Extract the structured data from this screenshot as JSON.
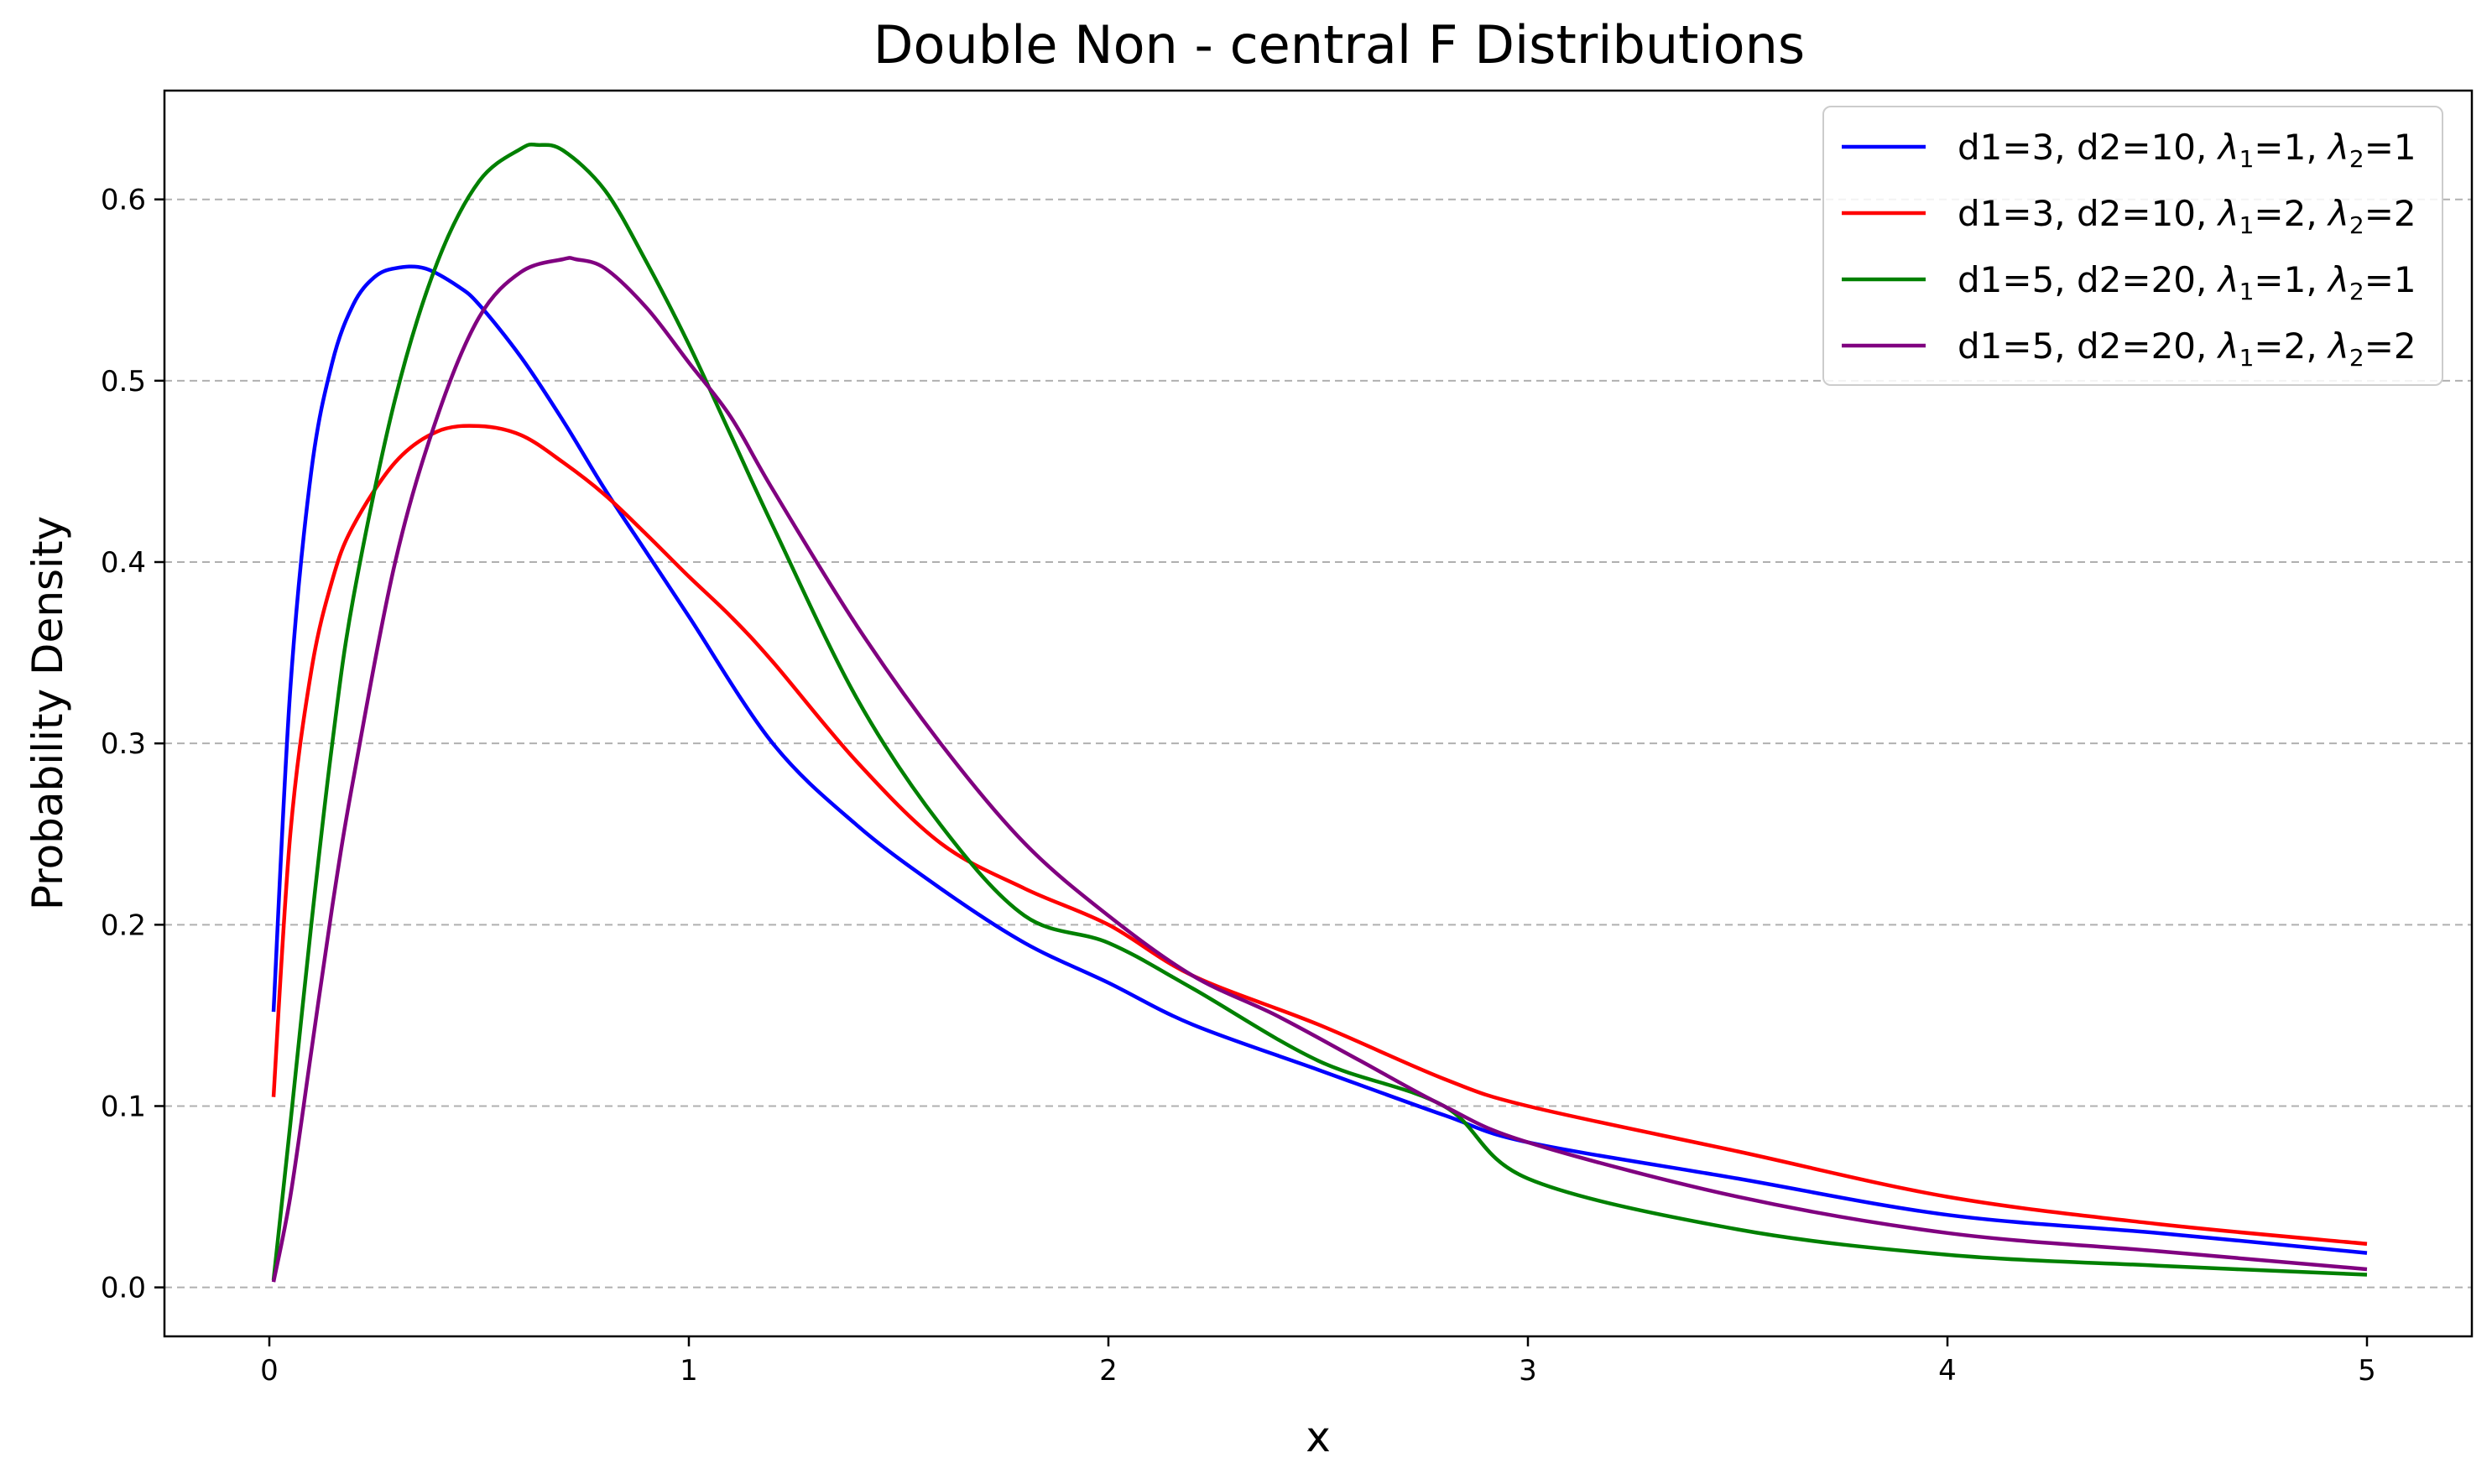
{
  "chart_data": {
    "type": "line",
    "title": "Double Non - central F Distributions",
    "xlabel": "x",
    "ylabel": "Probability Density",
    "xlim": [
      -0.25,
      5.25
    ],
    "ylim": [
      -0.027,
      0.66
    ],
    "xticks": [
      0,
      1,
      2,
      3,
      4,
      5
    ],
    "xtick_labels": [
      "0",
      "1",
      "2",
      "3",
      "4",
      "5"
    ],
    "yticks": [
      0.0,
      0.1,
      0.2,
      0.3,
      0.4,
      0.5,
      0.6
    ],
    "ytick_labels": [
      "0.0",
      "0.1",
      "0.2",
      "0.3",
      "0.4",
      "0.5",
      "0.6"
    ],
    "grid": "y-dashed",
    "legend_position": "top-right",
    "series": [
      {
        "name": "d1=3, d2=10, λ1=1, λ2=1",
        "label_parts": [
          "d1=3, d2=10, ",
          "λ",
          "1",
          "=1, ",
          "λ",
          "2",
          "=1"
        ],
        "color": "#0000ff",
        "x": [
          0.01,
          0.05,
          0.1,
          0.15,
          0.2,
          0.25,
          0.3,
          0.37,
          0.45,
          0.5,
          0.6,
          0.7,
          0.8,
          0.9,
          1.0,
          1.2,
          1.4,
          1.6,
          1.8,
          2.0,
          2.2,
          2.5,
          2.8,
          3.0,
          3.5,
          4.0,
          4.5,
          5.0
        ],
        "y": [
          0.152,
          0.33,
          0.45,
          0.51,
          0.542,
          0.557,
          0.562,
          0.562,
          0.552,
          0.542,
          0.513,
          0.478,
          0.44,
          0.405,
          0.37,
          0.3,
          0.255,
          0.22,
          0.19,
          0.168,
          0.145,
          0.12,
          0.095,
          0.08,
          0.06,
          0.04,
          0.03,
          0.019
        ]
      },
      {
        "name": "d1=3, d2=10, λ1=2, λ2=2",
        "label_parts": [
          "d1=3, d2=10, ",
          "λ",
          "1",
          "=2, ",
          "λ",
          "2",
          "=2"
        ],
        "color": "#ff0000",
        "x": [
          0.01,
          0.05,
          0.1,
          0.15,
          0.2,
          0.3,
          0.4,
          0.5,
          0.6,
          0.7,
          0.8,
          0.9,
          1.0,
          1.1,
          1.2,
          1.4,
          1.6,
          1.8,
          2.0,
          2.2,
          2.5,
          2.8,
          3.0,
          3.5,
          4.0,
          4.5,
          5.0
        ],
        "y": [
          0.105,
          0.25,
          0.34,
          0.39,
          0.42,
          0.455,
          0.472,
          0.475,
          0.47,
          0.455,
          0.437,
          0.415,
          0.392,
          0.37,
          0.345,
          0.29,
          0.245,
          0.22,
          0.2,
          0.172,
          0.145,
          0.115,
          0.1,
          0.075,
          0.05,
          0.035,
          0.024
        ]
      },
      {
        "name": "d1=5, d2=20, λ1=1, λ2=1",
        "label_parts": [
          "d1=5, d2=20, ",
          "λ",
          "1",
          "=1, ",
          "λ",
          "2",
          "=1"
        ],
        "color": "#008000",
        "x": [
          0.01,
          0.05,
          0.1,
          0.15,
          0.2,
          0.3,
          0.4,
          0.5,
          0.6,
          0.64,
          0.7,
          0.8,
          0.9,
          1.0,
          1.1,
          1.2,
          1.4,
          1.6,
          1.8,
          2.0,
          2.2,
          2.5,
          2.8,
          3.0,
          3.5,
          4.0,
          4.5,
          5.0
        ],
        "y": [
          0.004,
          0.09,
          0.2,
          0.3,
          0.38,
          0.49,
          0.565,
          0.61,
          0.628,
          0.63,
          0.627,
          0.605,
          0.565,
          0.52,
          0.47,
          0.42,
          0.325,
          0.255,
          0.205,
          0.19,
          0.165,
          0.125,
          0.1,
          0.06,
          0.032,
          0.018,
          0.012,
          0.007
        ]
      },
      {
        "name": "d1=5, d2=20, λ1=2, λ2=2",
        "label_parts": [
          "d1=5, d2=20, ",
          "λ",
          "1",
          "=2, ",
          "λ",
          "2",
          "=2"
        ],
        "color": "#800080",
        "x": [
          0.01,
          0.05,
          0.1,
          0.15,
          0.2,
          0.3,
          0.4,
          0.5,
          0.6,
          0.7,
          0.73,
          0.8,
          0.9,
          1.0,
          1.1,
          1.2,
          1.4,
          1.6,
          1.8,
          2.0,
          2.2,
          2.4,
          2.6,
          2.8,
          3.0,
          3.5,
          4.0,
          4.5,
          5.0
        ],
        "y": [
          0.003,
          0.05,
          0.13,
          0.21,
          0.28,
          0.4,
          0.48,
          0.535,
          0.56,
          0.567,
          0.567,
          0.562,
          0.54,
          0.51,
          0.48,
          0.44,
          0.365,
          0.3,
          0.245,
          0.205,
          0.172,
          0.15,
          0.125,
          0.1,
          0.08,
          0.05,
          0.03,
          0.02,
          0.01
        ]
      }
    ]
  }
}
